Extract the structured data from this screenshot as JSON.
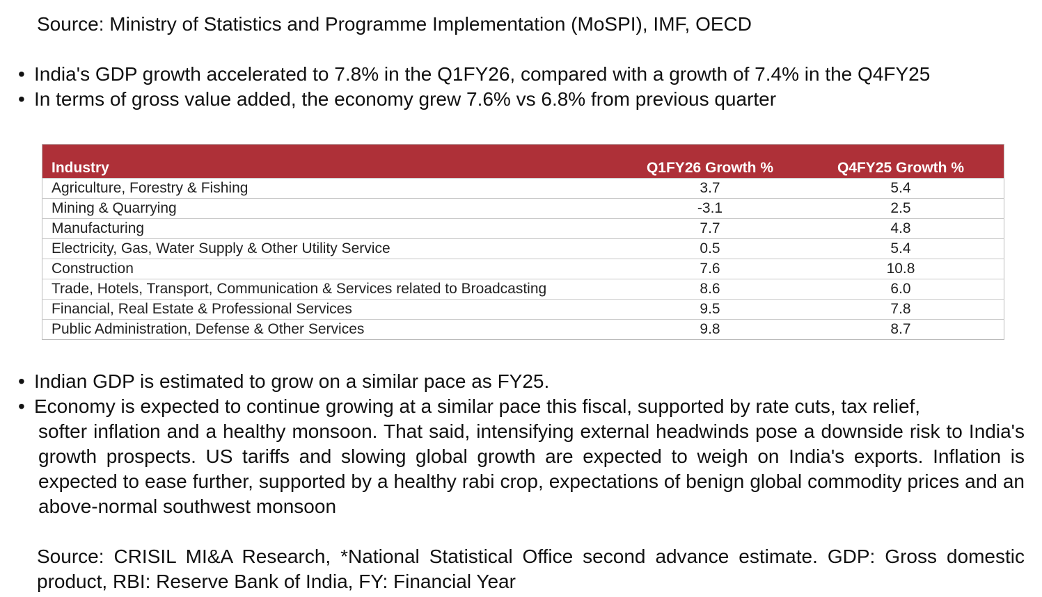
{
  "source_top": "Source: Ministry of Statistics and Programme Implementation (MoSPI), IMF, OECD",
  "bullets_top": [
    "India's GDP growth accelerated to 7.8% in the Q1FY26, compared with a growth of 7.4% in the Q4FY25",
    "In terms of gross value added, the economy grew 7.6% vs 6.8% from previous quarter"
  ],
  "table": {
    "headers": [
      "Industry",
      "Q1FY26 Growth %",
      "Q4FY25 Growth %"
    ],
    "rows": [
      [
        "Agriculture, Forestry & Fishing",
        "3.7",
        "5.4"
      ],
      [
        "Mining & Quarrying",
        "-3.1",
        "2.5"
      ],
      [
        "Manufacturing",
        "7.7",
        "4.8"
      ],
      [
        "Electricity, Gas, Water Supply & Other Utility Service",
        "0.5",
        "5.4"
      ],
      [
        "Construction",
        "7.6",
        "10.8"
      ],
      [
        "Trade, Hotels, Transport, Communication & Services related to Broadcasting",
        "8.6",
        "6.0"
      ],
      [
        "Financial, Real Estate & Professional Services",
        "9.5",
        "7.8"
      ],
      [
        "Public Administration, Defense & Other Services",
        "9.8",
        "8.7"
      ]
    ],
    "header_color": "#ae3038"
  },
  "bullets_bottom": [
    "Indian GDP is estimated to grow on a similar pace as FY25.",
    "Economy is expected to continue growing at a similar pace this fiscal, supported by rate cuts, tax relief,",
    "softer inflation and a healthy monsoon. That said, intensifying external headwinds pose a downside risk to India's growth prospects. US tariffs and slowing global growth are expected to weigh on India's exports. Inflation is expected to ease further, supported by a healthy rabi crop, expectations of benign global commodity prices and an above-normal southwest monsoon"
  ],
  "source_bottom": "Source: CRISIL MI&A Research, *National Statistical Office second advance estimate. GDP: Gross domestic product, RBI: Reserve Bank of India, FY: Financial Year"
}
